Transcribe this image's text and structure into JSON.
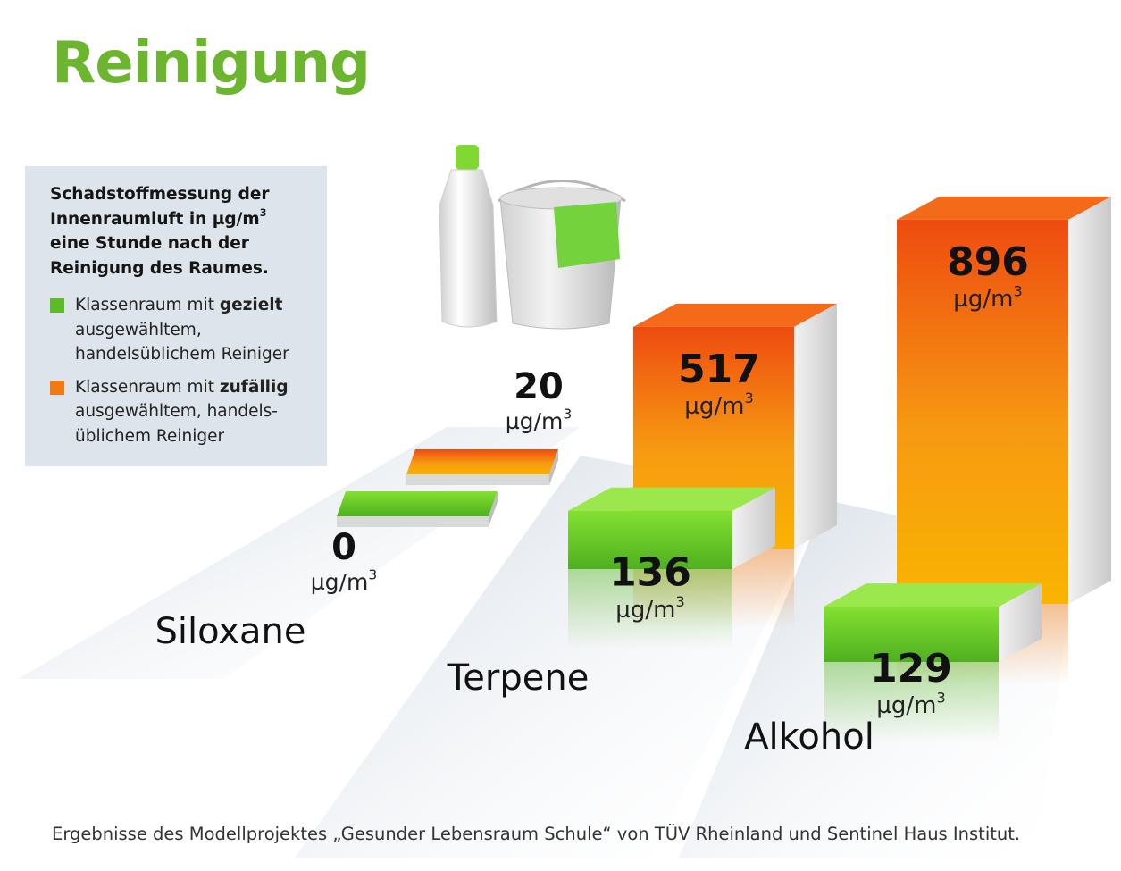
{
  "title": "Reinigung",
  "legend": {
    "heading_lines": [
      "Schadstoffmessung der",
      "Innenraumluft in µg/m",
      "eine Stunde nach der",
      "Reinigung des Raumes."
    ],
    "heading_sup": "3",
    "entries": [
      {
        "color": "#5dbb2a",
        "pre": "Klassenraum mit ",
        "bold": "gezielt",
        "lines": [
          "ausgewähltem,",
          "handelsüblichem Reiniger"
        ]
      },
      {
        "color": "#f07a14",
        "pre": "Klassenraum mit ",
        "bold": "zufällig",
        "lines": [
          "ausgewähltem, handels-",
          "üblichem Reiniger"
        ]
      }
    ]
  },
  "source": "Ergebnisse des Modellprojektes „Gesunder Lebensraum Schule“ von TÜV Rheinland und Sentinel Haus Institut.",
  "chart_data": {
    "type": "bar",
    "unit": "µg/m",
    "unit_sup": "3",
    "categories": [
      "Siloxane",
      "Terpene",
      "Alkohol"
    ],
    "series": [
      {
        "name": "Klassenraum mit gezielt ausgewähltem, handelsüblichem Reiniger",
        "values": [
          0,
          136,
          129
        ]
      },
      {
        "name": "Klassenraum mit zufällig ausgewähltem, handelsüblichem Reiniger",
        "values": [
          20,
          517,
          896
        ]
      }
    ],
    "value_labels": {
      "gezielt": [
        "0",
        "136",
        "129"
      ],
      "zufaellig": [
        "20",
        "517",
        "896"
      ]
    },
    "colors": {
      "gezielt": "#5dbb2a",
      "zufaellig": "#f07a14"
    }
  }
}
